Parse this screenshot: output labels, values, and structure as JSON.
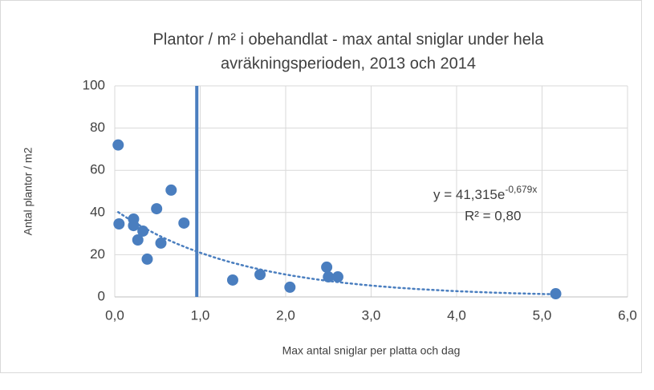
{
  "chart_data": {
    "type": "scatter",
    "title": [
      "Plantor / m² i obehandlat - max antal sniglar under hela",
      "avräkningsperioden, 2013 och 2014"
    ],
    "x_label": "Max antal sniglar per platta och dag",
    "y_label": "Antal plantor / m2",
    "series": [
      {
        "name": "Plantor",
        "color": "#4a7ebf",
        "x": [
          0.04,
          0.05,
          0.22,
          0.22,
          0.27,
          0.33,
          0.38,
          0.49,
          0.54,
          0.66,
          0.81,
          1.38,
          1.7,
          2.05,
          2.48,
          2.5,
          2.61,
          5.16
        ],
        "values": [
          72,
          34.6,
          36.9,
          33.8,
          27,
          31.2,
          17.9,
          41.8,
          25.5,
          50.6,
          35,
          8,
          10.6,
          4.6,
          14.1,
          9.5,
          9.5,
          1.5
        ]
      }
    ],
    "trendline": {
      "a": 41.315,
      "b": -0.679,
      "equation": "y = 41,315e",
      "exponent": "-0,679x",
      "r2": "R² = 0,80"
    },
    "vline": 0.96,
    "xlim": [
      0,
      6
    ],
    "xticks": [
      {
        "value": 0,
        "label": "0,0"
      },
      {
        "value": 1,
        "label": "1,0"
      },
      {
        "value": 2,
        "label": "2,0"
      },
      {
        "value": 3,
        "label": "3,0"
      },
      {
        "value": 4,
        "label": "4,0"
      },
      {
        "value": 5,
        "label": "5,0"
      },
      {
        "value": 6,
        "label": "6,0"
      }
    ],
    "ylim": [
      0,
      100
    ],
    "yticks": [
      0,
      20,
      40,
      60,
      80,
      100
    ],
    "grid": true
  }
}
